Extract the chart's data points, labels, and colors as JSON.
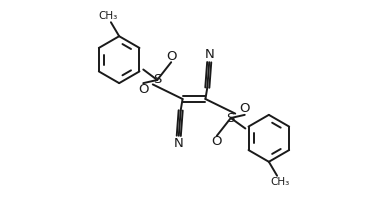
{
  "background_color": "#ffffff",
  "line_color": "#1a1a1a",
  "line_width": 1.4,
  "figsize": [
    3.88,
    1.98
  ],
  "dpi": 100,
  "xlim": [
    -2.1,
    2.1
  ],
  "ylim": [
    -1.55,
    1.55
  ]
}
